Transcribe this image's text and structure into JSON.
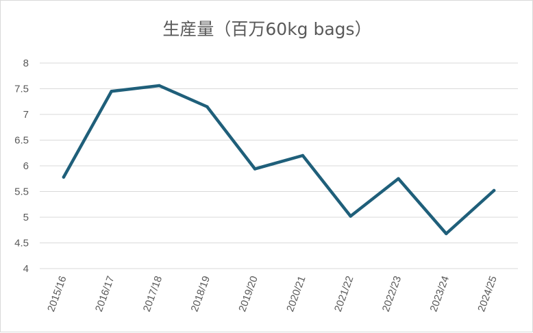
{
  "chart_data": {
    "type": "line",
    "title": "生産量（百万60kg bags）",
    "xlabel": "",
    "ylabel": "",
    "categories": [
      "2015/16",
      "2016/17",
      "2017/18",
      "2018/19",
      "2019/20",
      "2020/21",
      "2021/22",
      "2022/23",
      "2023/24",
      "2024/25"
    ],
    "series": [
      {
        "values": [
          5.78,
          7.45,
          7.56,
          7.15,
          5.94,
          6.2,
          5.02,
          5.75,
          4.68,
          5.52
        ],
        "color": "#1f5f7a"
      }
    ],
    "ylim": [
      4,
      8
    ],
    "yticks": [
      4,
      4.5,
      5,
      5.5,
      6,
      6.5,
      7,
      7.5,
      8
    ],
    "ytick_labels": [
      "4",
      "4.5",
      "5",
      "5.5",
      "6",
      "6.5",
      "7",
      "7.5",
      "8"
    ],
    "grid": true,
    "legend": "none"
  }
}
